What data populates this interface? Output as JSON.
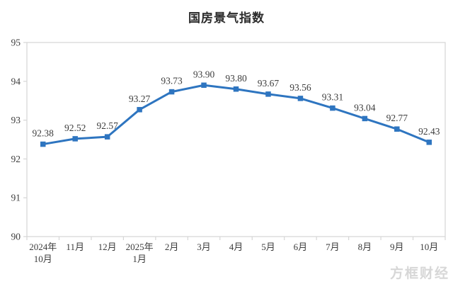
{
  "chart_data": {
    "type": "line",
    "title": "国房景气指数",
    "categories": [
      [
        "2024年",
        "10月"
      ],
      [
        "11月"
      ],
      [
        "12月"
      ],
      [
        "2025年",
        "1月"
      ],
      [
        "2月"
      ],
      [
        "3月"
      ],
      [
        "4月"
      ],
      [
        "5月"
      ],
      [
        "6月"
      ],
      [
        "7月"
      ],
      [
        "8月"
      ],
      [
        "9月"
      ],
      [
        "10月"
      ]
    ],
    "values": [
      92.38,
      92.52,
      92.57,
      93.27,
      93.73,
      93.9,
      93.8,
      93.67,
      93.56,
      93.31,
      93.04,
      92.77,
      92.43
    ],
    "point_labels": [
      "92.38",
      "92.52",
      "92.57",
      "93.27",
      "93.73",
      "93.90",
      "93.80",
      "93.67",
      "93.56",
      "93.31",
      "93.04",
      "92.77",
      "92.43"
    ],
    "xlabel": "",
    "ylabel": "",
    "ylim": [
      90,
      95
    ],
    "y_ticks": [
      90,
      91,
      92,
      93,
      94,
      95
    ],
    "grid": false,
    "legend": "none",
    "line_color": "#2e75c0",
    "marker": "square",
    "axis_color": "#d6d6d6",
    "text_color": "#3c3c3c"
  },
  "watermark": {
    "text": "方框财经"
  }
}
